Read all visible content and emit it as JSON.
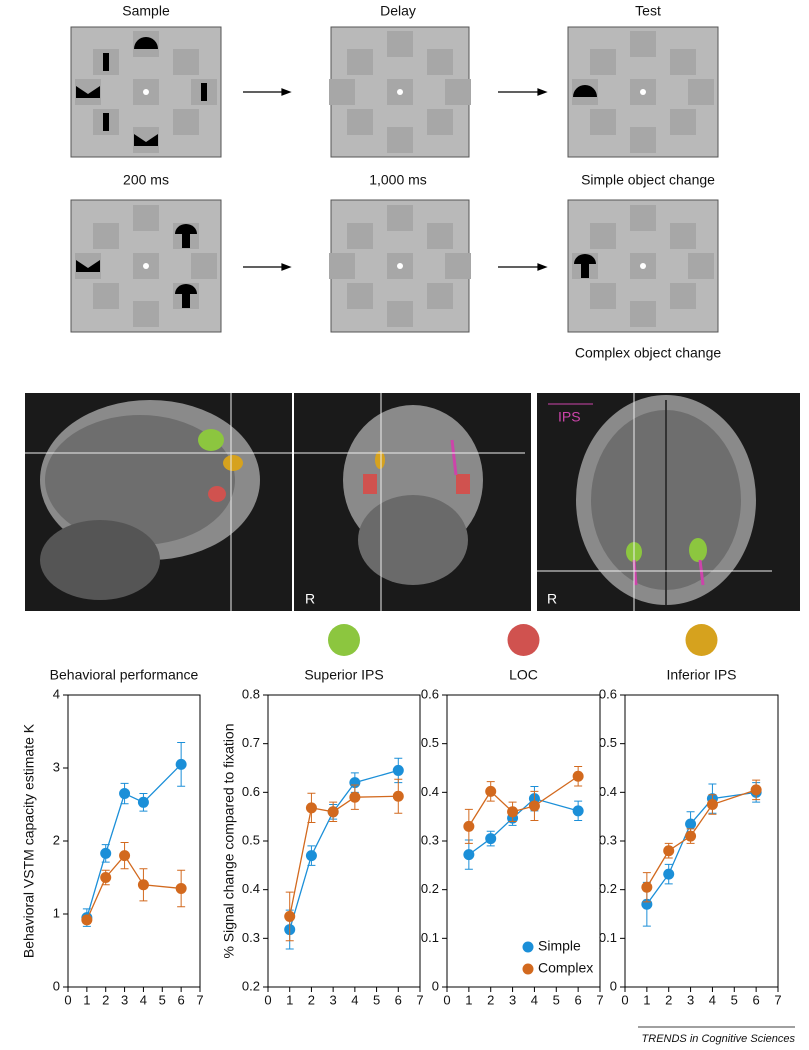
{
  "task": {
    "headers": [
      "Sample",
      "Delay",
      "Test"
    ],
    "row1_labels": [
      "200 ms",
      "1,000 ms",
      "Simple object change"
    ],
    "row2_label": "Complex object change"
  },
  "brain": {
    "ips_label": "IPS",
    "r_labels": [
      "R",
      "R"
    ]
  },
  "chart_data": [
    {
      "type": "line",
      "title": "Behavioral performance",
      "y_label": "Behavioral VSTM capacity estimate K",
      "x": [
        1,
        2,
        3,
        4,
        6
      ],
      "xlim": [
        0,
        7
      ],
      "xticks": [
        0,
        1,
        2,
        3,
        4,
        5,
        6,
        7
      ],
      "ylim": [
        0,
        4
      ],
      "yticks": [
        0,
        1,
        2,
        3,
        4
      ],
      "series": [
        {
          "color": "#1b8fd8",
          "values": [
            0.95,
            1.83,
            2.65,
            2.53,
            3.05
          ],
          "errors": [
            0.12,
            0.12,
            0.14,
            0.12,
            0.3
          ]
        },
        {
          "color": "#d2691e",
          "values": [
            0.92,
            1.5,
            1.8,
            1.4,
            1.35
          ],
          "errors": [
            0.05,
            0.1,
            0.18,
            0.22,
            0.25
          ]
        }
      ]
    },
    {
      "type": "line",
      "title": "Superior IPS",
      "y_label": "% Signal change compared to fixation",
      "region_color": "#8cc63f",
      "x": [
        1,
        2,
        3,
        4,
        6
      ],
      "xlim": [
        0,
        7
      ],
      "xticks": [
        0,
        1,
        2,
        3,
        4,
        5,
        6,
        7
      ],
      "ylim": [
        0.2,
        0.8
      ],
      "yticks": [
        0.2,
        0.3,
        0.4,
        0.5,
        0.6,
        0.7,
        0.8
      ],
      "series": [
        {
          "color": "#1b8fd8",
          "values": [
            0.318,
            0.47,
            0.56,
            0.62,
            0.645
          ],
          "errors": [
            0.04,
            0.02,
            0.015,
            0.02,
            0.025
          ]
        },
        {
          "color": "#d2691e",
          "values": [
            0.345,
            0.568,
            0.56,
            0.59,
            0.592
          ],
          "errors": [
            0.05,
            0.03,
            0.02,
            0.025,
            0.035
          ]
        }
      ]
    },
    {
      "type": "line",
      "title": "LOC",
      "region_color": "#d0524f",
      "legend": "lower right",
      "x": [
        1,
        2,
        3,
        4,
        6
      ],
      "xlim": [
        0,
        7
      ],
      "xticks": [
        0,
        1,
        2,
        3,
        4,
        5,
        6,
        7
      ],
      "ylim": [
        0,
        0.6
      ],
      "yticks": [
        0,
        0.1,
        0.2,
        0.3,
        0.4,
        0.5,
        0.6
      ],
      "series": [
        {
          "name": "Simple",
          "color": "#1b8fd8",
          "values": [
            0.272,
            0.305,
            0.347,
            0.387,
            0.362
          ],
          "errors": [
            0.03,
            0.015,
            0.015,
            0.025,
            0.02
          ]
        },
        {
          "name": "Complex",
          "color": "#d2691e",
          "values": [
            0.33,
            0.402,
            0.36,
            0.372,
            0.433
          ],
          "errors": [
            0.035,
            0.02,
            0.02,
            0.03,
            0.02
          ]
        }
      ]
    },
    {
      "type": "line",
      "title": "Inferior IPS",
      "region_color": "#d6a21e",
      "x": [
        1,
        2,
        3,
        4,
        6
      ],
      "xlim": [
        0,
        7
      ],
      "xticks": [
        0,
        1,
        2,
        3,
        4,
        5,
        6,
        7
      ],
      "ylim": [
        0,
        0.6
      ],
      "yticks": [
        0,
        0.1,
        0.2,
        0.3,
        0.4,
        0.5,
        0.6
      ],
      "series": [
        {
          "color": "#1b8fd8",
          "values": [
            0.17,
            0.232,
            0.335,
            0.387,
            0.4
          ],
          "errors": [
            0.045,
            0.02,
            0.025,
            0.03,
            0.02
          ]
        },
        {
          "color": "#d2691e",
          "values": [
            0.205,
            0.28,
            0.31,
            0.375,
            0.405
          ],
          "errors": [
            0.03,
            0.015,
            0.015,
            0.02,
            0.02
          ]
        }
      ]
    }
  ],
  "footer": "TRENDS in Cognitive Sciences"
}
